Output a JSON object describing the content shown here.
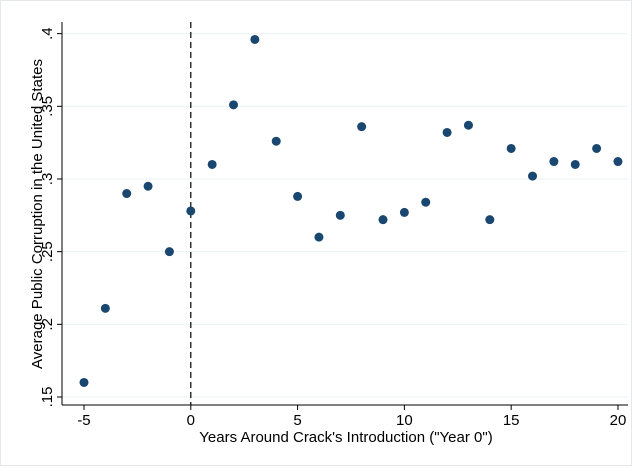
{
  "chart_data": {
    "type": "scatter",
    "xlabel": "Years Around Crack's Introduction (\"Year 0\")",
    "ylabel": "Average Public Corruption in the United States",
    "x": [
      -5,
      -4,
      -3,
      -2,
      -1,
      0,
      1,
      2,
      3,
      4,
      5,
      6,
      7,
      8,
      9,
      10,
      11,
      12,
      13,
      14,
      15,
      16,
      17,
      18,
      19,
      20
    ],
    "values": [
      0.16,
      0.211,
      0.29,
      0.295,
      0.25,
      0.278,
      0.31,
      0.351,
      0.396,
      0.326,
      0.288,
      0.26,
      0.275,
      0.336,
      0.272,
      0.277,
      0.284,
      0.332,
      0.337,
      0.272,
      0.321,
      0.302,
      0.312,
      0.31,
      0.321,
      0.312
    ],
    "color": "#1a476f",
    "xlim": [
      -6.03,
      20.47
    ],
    "ylim": [
      0.1445,
      0.408
    ],
    "xticks": [
      -5,
      0,
      5,
      10,
      15,
      20
    ],
    "yticks": [
      {
        "value": 0.15,
        "label": ".15"
      },
      {
        "value": 0.2,
        "label": ".2"
      },
      {
        "value": 0.25,
        "label": ".25"
      },
      {
        "value": 0.3,
        "label": ".3"
      },
      {
        "value": 0.35,
        "label": ".35"
      },
      {
        "value": 0.4,
        "label": ".4"
      }
    ],
    "xline": 0,
    "grid": true
  }
}
